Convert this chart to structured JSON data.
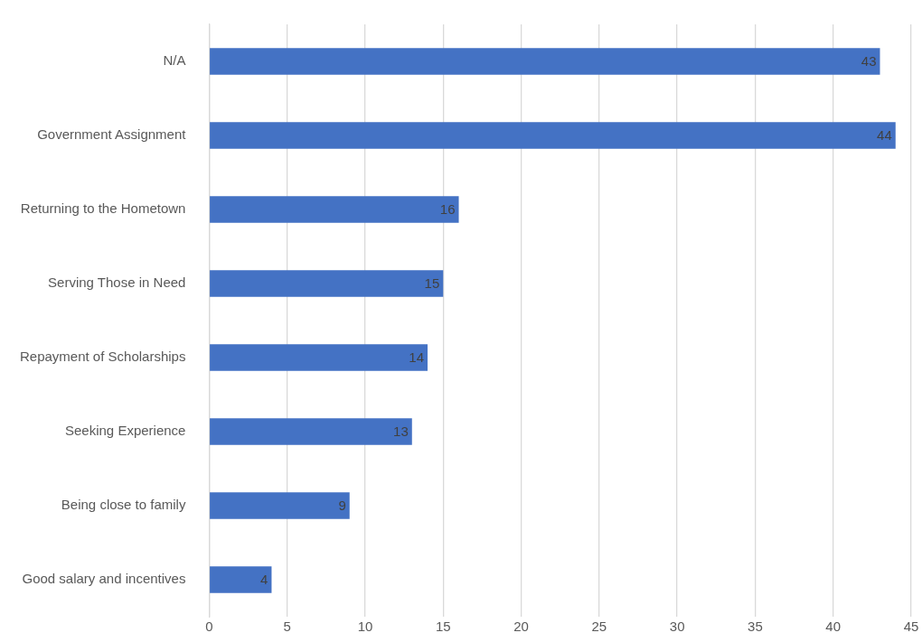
{
  "chart_data": {
    "type": "bar",
    "orientation": "horizontal",
    "categories": [
      "N/A",
      "Government Assignment",
      "Returning to the Hometown",
      "Serving Those in Need",
      "Repayment of Scholarships",
      "Seeking Experience",
      "Being close to family",
      "Good salary and incentives"
    ],
    "values": [
      43,
      44,
      16,
      15,
      14,
      13,
      9,
      4
    ],
    "color": "#4472c4",
    "xlim": [
      0,
      45
    ],
    "xticks": [
      0,
      5,
      10,
      15,
      20,
      25,
      30,
      35,
      40,
      45
    ],
    "grid": "x",
    "data_labels": true
  }
}
